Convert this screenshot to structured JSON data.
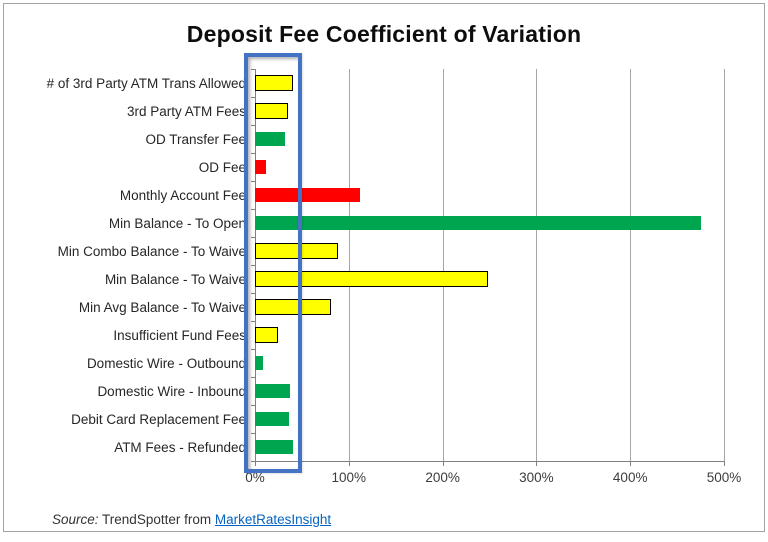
{
  "chart_data": {
    "type": "bar",
    "orientation": "horizontal",
    "title": "Deposit Fee Coefficient of Variation",
    "categories": [
      "# of 3rd Party ATM Trans Allowed",
      "3rd Party ATM Fees",
      "OD Transfer Fee",
      "OD Fee",
      "Monthly Account Fee",
      "Min Balance - To Open",
      "Min Combo Balance - To Waive",
      "Min Balance - To Waive",
      "Min Avg Balance - To Waive",
      "Insufficient Fund Fees",
      "Domestic Wire - Outbound",
      "Domestic Wire - Inbound",
      "Debit Card Replacement Fee",
      "ATM Fees - Refunded"
    ],
    "values": [
      40,
      35,
      32,
      12,
      112,
      475,
      88,
      248,
      81,
      24,
      9,
      37,
      36,
      41
    ],
    "bar_colors": [
      "yellow",
      "yellow",
      "green",
      "red",
      "red",
      "green",
      "yellow",
      "yellow",
      "yellow",
      "yellow",
      "green",
      "green",
      "green",
      "green"
    ],
    "x_tick_labels": [
      "0%",
      "100%",
      "200%",
      "300%",
      "400%",
      "500%"
    ],
    "xlim": [
      0,
      500
    ],
    "xlabel": "",
    "ylabel": "",
    "grid": "vertical",
    "legend": "none",
    "annotation": {
      "type": "highlight-box",
      "range": "0% to 50%",
      "color": "#4472c4"
    }
  },
  "colors": {
    "yellow": "#ffff00",
    "green": "#00a550",
    "red": "#ff0000",
    "highlight": "#4472c4",
    "gridline": "#a6a6a6",
    "axis": "#808080",
    "link": "#0563c1"
  },
  "footer": {
    "source_label": "Source:",
    "source_text": " TrendSpotter from ",
    "link_text": "MarketRatesInsight"
  }
}
